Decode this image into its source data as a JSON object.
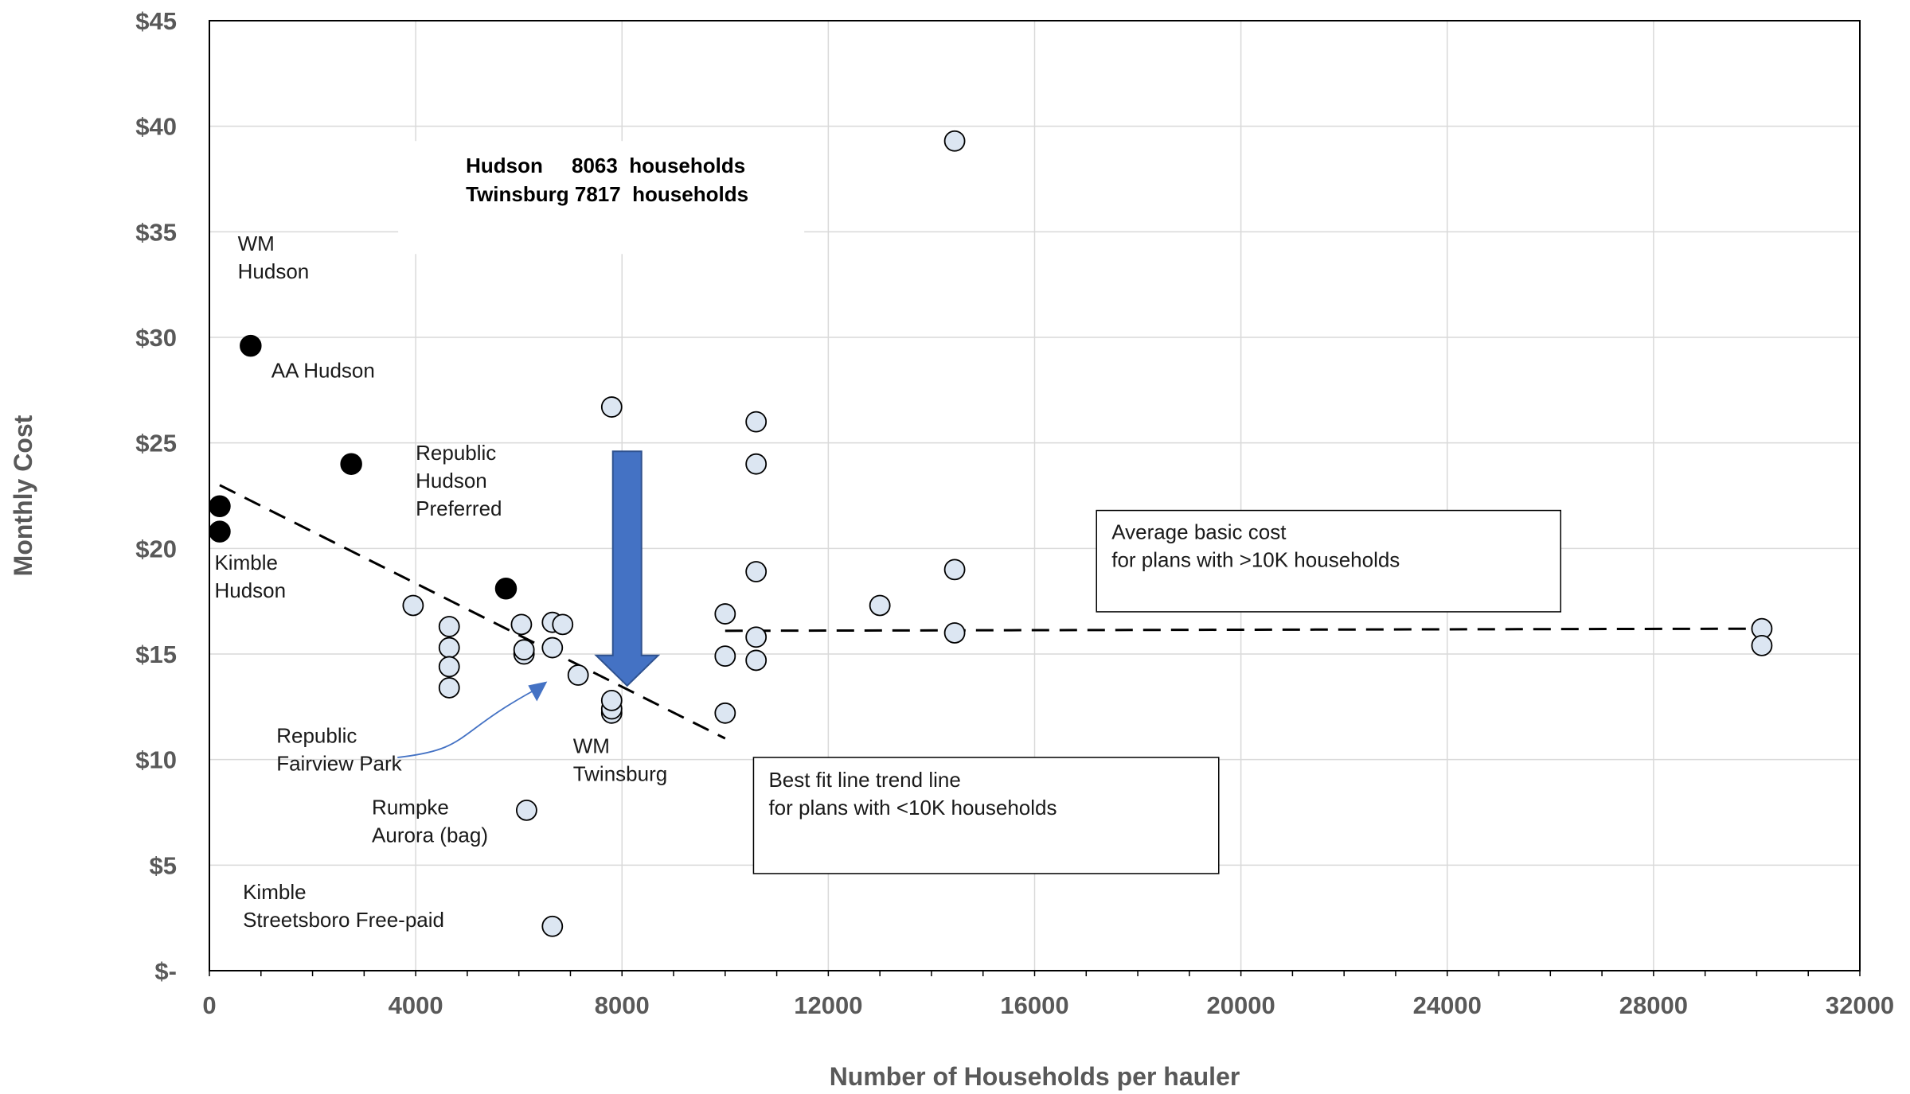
{
  "chart_data": {
    "type": "scatter",
    "xlabel": "Number of Households per hauler",
    "ylabel": "Monthly Cost",
    "xlim": [
      0,
      32000
    ],
    "ylim": [
      0,
      45
    ],
    "x_ticks": [
      "0",
      "4000",
      "8000",
      "12000",
      "16000",
      "20000",
      "24000",
      "28000",
      "32000"
    ],
    "y_ticks": [
      "$-",
      "$5",
      "$10",
      "$15",
      "$20",
      "$25",
      "$30",
      "$35",
      "$40",
      "$45"
    ],
    "grid": true,
    "colors": {
      "highlight_fill": "#000000",
      "other_fill": "#dce6f2",
      "marker_stroke": "#000000",
      "arrow": "#4472c4",
      "grid": "#d9d9d9"
    },
    "highlighted_points": [
      {
        "x": 800,
        "y": 29.6
      },
      {
        "x": 2750,
        "y": 24.0
      },
      {
        "x": 200,
        "y": 22.0
      },
      {
        "x": 200,
        "y": 20.8
      },
      {
        "x": 5750,
        "y": 18.1
      }
    ],
    "other_points": [
      {
        "x": 3950,
        "y": 17.3
      },
      {
        "x": 4650,
        "y": 16.3
      },
      {
        "x": 4650,
        "y": 15.3
      },
      {
        "x": 4650,
        "y": 14.4
      },
      {
        "x": 4650,
        "y": 13.4
      },
      {
        "x": 6050,
        "y": 16.4
      },
      {
        "x": 6100,
        "y": 15.0
      },
      {
        "x": 6100,
        "y": 15.2
      },
      {
        "x": 6650,
        "y": 16.5
      },
      {
        "x": 6850,
        "y": 16.4
      },
      {
        "x": 6650,
        "y": 15.3
      },
      {
        "x": 7150,
        "y": 14.0
      },
      {
        "x": 7800,
        "y": 12.2
      },
      {
        "x": 7800,
        "y": 12.4
      },
      {
        "x": 7800,
        "y": 12.8
      },
      {
        "x": 7800,
        "y": 26.7
      },
      {
        "x": 6150,
        "y": 7.6
      },
      {
        "x": 6650,
        "y": 2.1
      },
      {
        "x": 10000,
        "y": 16.9
      },
      {
        "x": 10000,
        "y": 14.9
      },
      {
        "x": 10000,
        "y": 12.2
      },
      {
        "x": 10600,
        "y": 26.0
      },
      {
        "x": 10600,
        "y": 24.0
      },
      {
        "x": 10600,
        "y": 18.9
      },
      {
        "x": 10600,
        "y": 15.8
      },
      {
        "x": 10600,
        "y": 14.7
      },
      {
        "x": 13000,
        "y": 17.3
      },
      {
        "x": 14450,
        "y": 39.3
      },
      {
        "x": 14450,
        "y": 19.0
      },
      {
        "x": 14450,
        "y": 16.0
      },
      {
        "x": 30100,
        "y": 16.2
      },
      {
        "x": 30100,
        "y": 15.4
      }
    ],
    "trend_lines": [
      {
        "x": [
          200,
          10000
        ],
        "y": [
          23.0,
          11.0
        ]
      },
      {
        "x": [
          10000,
          30100
        ],
        "y": [
          16.1,
          16.2
        ]
      }
    ],
    "arrow": {
      "x": 8100,
      "from_y": 24.6,
      "to_y": 13.5
    },
    "small_arrow": {
      "from": {
        "x": 4650,
        "y": 10.1
      },
      "to": {
        "x": 6550,
        "y": 13.7
      }
    },
    "annotations": [
      {
        "lines": [
          "WM",
          "Hudson"
        ],
        "x": 550,
        "y": 34.1
      },
      {
        "lines": [
          "AA Hudson"
        ],
        "x": 1200,
        "y": 28.1
      },
      {
        "lines": [
          "Republic",
          "Hudson",
          "Preferred"
        ],
        "x": 4000,
        "y": 24.2
      },
      {
        "lines": [
          "Kimble",
          "Hudson"
        ],
        "x": 100,
        "y": 19.0
      },
      {
        "lines": [
          "Republic",
          "Fairview Park"
        ],
        "x": 1300,
        "y": 10.8
      },
      {
        "lines": [
          "WM",
          "Twinsburg"
        ],
        "x": 7050,
        "y": 10.3
      },
      {
        "lines": [
          "Rumpke",
          "Aurora (bag)"
        ],
        "x": 3150,
        "y": 7.4
      },
      {
        "lines": [
          "Kimble",
          "Streetsboro Free-paid"
        ],
        "x": 650,
        "y": 3.4
      }
    ],
    "info_box": {
      "lines": [
        "Hudson     8063  households",
        "Twinsburg 7817  households"
      ]
    },
    "boxes": [
      {
        "lines": [
          "Average basic cost",
          "for plans with >10K households"
        ]
      },
      {
        "lines": [
          "Best fit line trend line",
          "for plans with <10K households"
        ]
      }
    ]
  }
}
